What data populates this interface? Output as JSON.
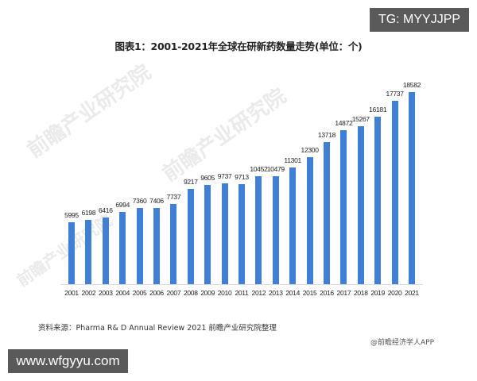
{
  "overlay": {
    "tg_badge": "TG: MYYJJPP",
    "url_badge": "www.wfgyyu.com"
  },
  "header": {
    "title": "图表1：2001-2021年全球在研新药数量走势(单位：个)"
  },
  "footer": {
    "source": "资料来源：Pharma R& D Annual Review 2021 前瞻产业研究院整理",
    "credit": "@前瞻经济学人APP"
  },
  "watermarks": [
    "前瞻产业研究院",
    "前瞻产业研究院",
    "前瞻产业研究院"
  ],
  "style": {
    "bar_color": "#3f7fd6"
  },
  "chart_data": {
    "type": "bar",
    "title": "图表1：2001-2021年全球在研新药数量走势(单位：个)",
    "xlabel": "",
    "ylabel": "",
    "unit": "个",
    "grid": false,
    "legend": null,
    "data_labels": true,
    "ylim": [
      0,
      18582
    ],
    "categories": [
      "2001",
      "2002",
      "2003",
      "2004",
      "2005",
      "2006",
      "2007",
      "2008",
      "2009",
      "2010",
      "2011",
      "2012",
      "2013",
      "2014",
      "2015",
      "2016",
      "2017",
      "2018",
      "2019",
      "2020",
      "2021"
    ],
    "values": [
      5995,
      6198,
      6416,
      6994,
      7360,
      7406,
      7737,
      9217,
      9605,
      9737,
      9713,
      10452,
      10479,
      11301,
      12300,
      13718,
      14872,
      15267,
      16181,
      17737,
      18582
    ]
  }
}
